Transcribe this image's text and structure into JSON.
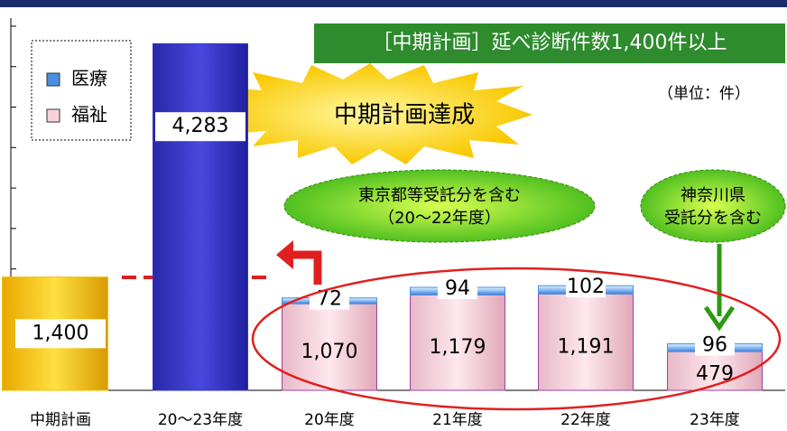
{
  "chart_data": {
    "type": "bar",
    "title": "［中期計画］延べ診断件数1,400件以上",
    "unit_label": "（単位：件）",
    "categories": [
      "中期計画",
      "20～23年度",
      "20年度",
      "21年度",
      "22年度",
      "23年度"
    ],
    "plan": {
      "values": [
        1400,
        null,
        null,
        null,
        null,
        null
      ],
      "value_labels": [
        "1,400",
        null,
        null,
        null,
        null,
        null
      ],
      "color": "#f5c000"
    },
    "total": {
      "values": [
        null,
        4283,
        null,
        null,
        null,
        null
      ],
      "value_labels": [
        null,
        "4,283",
        null,
        null,
        null,
        null
      ],
      "color": "#3535c8"
    },
    "series": [
      {
        "name": "福祉",
        "color": "#f8d3dc",
        "values": [
          null,
          null,
          1070,
          1179,
          1191,
          479
        ],
        "value_labels": [
          null,
          null,
          "1,070",
          "1,179",
          "1,191",
          null
        ]
      },
      {
        "name": "医療",
        "color": "#4a8fe0",
        "values": [
          null,
          null,
          72,
          94,
          102,
          96
        ]
      }
    ],
    "ylim": [
      0,
      4600
    ],
    "yticks": [
      0,
      500,
      1000,
      1500,
      2000,
      2500,
      3000,
      3500,
      4000,
      4500
    ],
    "annotations": [
      {
        "text": "中期計画達成"
      },
      {
        "lines": [
          "東京都等受託分を含む",
          "（20～22年度）"
        ]
      },
      {
        "lines": [
          "神奈川県",
          "受託分を含む"
        ]
      }
    ]
  }
}
